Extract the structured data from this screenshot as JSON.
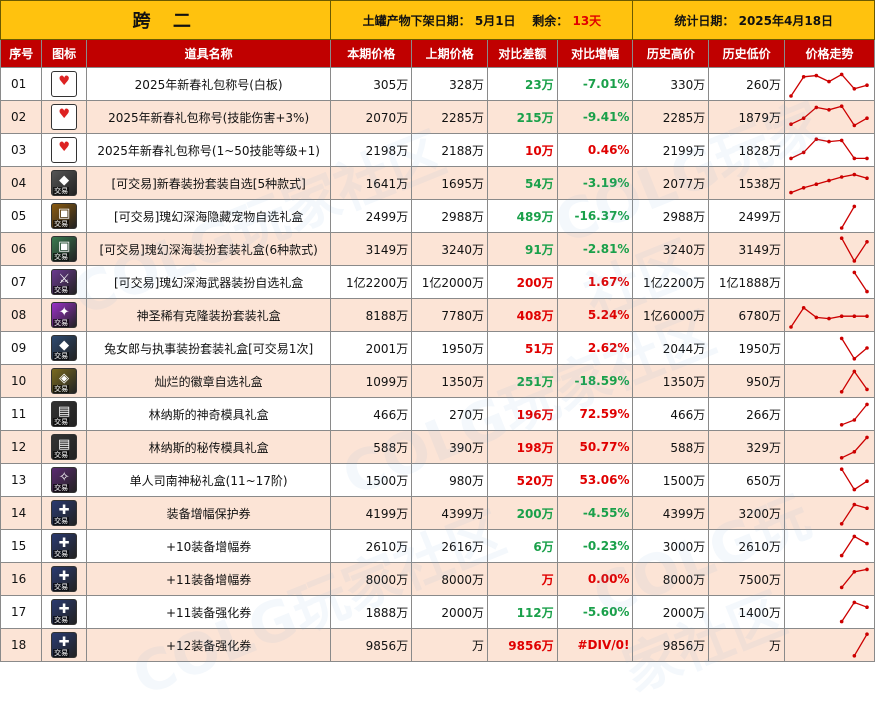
{
  "header": {
    "title": "跨 二",
    "shelf_label": "土罐产物下架日期：",
    "shelf_date": "5月1日",
    "remain_label": "剩余：",
    "remain_value": "13天",
    "stat_label": "统计日期：",
    "stat_date": "2025年4月18日"
  },
  "columns": [
    "序号",
    "图标",
    "道具名称",
    "本期价格",
    "上期价格",
    "对比差额",
    "对比增幅",
    "历史高价",
    "历史低价",
    "价格走势"
  ],
  "colors": {
    "header_bg": "#FFC20E",
    "column_bg": "#C00000",
    "even_row": "#FCE4D6",
    "increase": "#e00000",
    "decrease": "#1aa04a",
    "spark": "#cc0000"
  },
  "rows": [
    {
      "idx": "01",
      "name": "2025年新春礼包称号(白板)",
      "cur": "305万",
      "prev": "328万",
      "diff": "23万",
      "pct": "-7.01%",
      "trend": "down",
      "high": "330万",
      "low": "260万",
      "icon": "title-badge-icon",
      "icon_color": "#d22",
      "spark": [
        1,
        0.2,
        0.15,
        0.4,
        0.1,
        0.7,
        0.55
      ]
    },
    {
      "idx": "02",
      "name": "2025年新春礼包称号(技能伤害+3%)",
      "cur": "2070万",
      "prev": "2285万",
      "diff": "215万",
      "pct": "-9.41%",
      "trend": "down",
      "high": "2285万",
      "low": "1879万",
      "icon": "title-badge-icon",
      "icon_color": "#d22",
      "spark": [
        0.8,
        0.55,
        0.1,
        0.2,
        0.05,
        0.85,
        0.55
      ]
    },
    {
      "idx": "03",
      "name": "2025年新春礼包称号(1~50技能等级+1)",
      "cur": "2198万",
      "prev": "2188万",
      "diff": "10万",
      "pct": "0.46%",
      "trend": "up",
      "high": "2199万",
      "low": "1828万",
      "icon": "title-badge-icon",
      "icon_color": "#d22",
      "spark": [
        0.85,
        0.6,
        0.05,
        0.15,
        0.1,
        0.85,
        0.85
      ]
    },
    {
      "idx": "04",
      "name": "[可交易]新春装扮套装自选[5种款式]",
      "cur": "1641万",
      "prev": "1695万",
      "diff": "54万",
      "pct": "-3.19%",
      "trend": "down",
      "high": "2077万",
      "low": "1538万",
      "icon": "costume-box-icon",
      "icon_color": "#555",
      "spark": [
        0.9,
        0.7,
        0.55,
        0.4,
        0.25,
        0.15,
        0.3
      ]
    },
    {
      "idx": "05",
      "name": "[可交易]瑰幻深海隐藏宠物自选礼盒",
      "cur": "2499万",
      "prev": "2988万",
      "diff": "489万",
      "pct": "-16.37%",
      "trend": "down",
      "high": "2988万",
      "low": "2499万",
      "icon": "chest-icon",
      "icon_color": "#8a5a10",
      "spark": [
        null,
        null,
        null,
        null,
        1,
        0.1,
        null
      ]
    },
    {
      "idx": "06",
      "name": "[可交易]瑰幻深海装扮套装礼盒(6种款式)",
      "cur": "3149万",
      "prev": "3240万",
      "diff": "91万",
      "pct": "-2.81%",
      "trend": "down",
      "high": "3240万",
      "low": "3149万",
      "icon": "chest-icon",
      "icon_color": "#3a7a50",
      "spark": [
        null,
        null,
        null,
        null,
        0.05,
        1,
        0.2
      ]
    },
    {
      "idx": "07",
      "name": "[可交易]瑰幻深海武器装扮自选礼盒",
      "cur": "1亿2200万",
      "prev": "1亿2000万",
      "diff": "200万",
      "pct": "1.67%",
      "trend": "up",
      "high": "1亿2200万",
      "low": "1亿1888万",
      "icon": "weapon-box-icon",
      "icon_color": "#6a3a90",
      "spark": [
        null,
        null,
        null,
        null,
        null,
        0.1,
        0.9
      ]
    },
    {
      "idx": "08",
      "name": "神圣稀有克隆装扮套装礼盒",
      "cur": "8188万",
      "prev": "7780万",
      "diff": "408万",
      "pct": "5.24%",
      "trend": "up",
      "high": "1亿6000万",
      "low": "6780万",
      "icon": "clone-box-icon",
      "icon_color": "#9b30c8",
      "spark": [
        1,
        0.2,
        0.6,
        0.65,
        0.55,
        0.55,
        0.55
      ]
    },
    {
      "idx": "09",
      "name": "兔女郎与执事装扮套装礼盒[可交易1次]",
      "cur": "2001万",
      "prev": "1950万",
      "diff": "51万",
      "pct": "2.62%",
      "trend": "up",
      "high": "2044万",
      "low": "1950万",
      "icon": "costume-box-icon",
      "icon_color": "#2e4a70",
      "spark": [
        null,
        null,
        null,
        null,
        0.1,
        0.95,
        0.5
      ]
    },
    {
      "idx": "10",
      "name": "灿烂的徽章自选礼盒",
      "cur": "1099万",
      "prev": "1350万",
      "diff": "251万",
      "pct": "-18.59%",
      "trend": "down",
      "high": "1350万",
      "low": "950万",
      "icon": "emblem-box-icon",
      "icon_color": "#7a6a20",
      "spark": [
        null,
        null,
        null,
        null,
        0.95,
        0.1,
        0.85
      ]
    },
    {
      "idx": "11",
      "name": "林纳斯的神奇模具礼盒",
      "cur": "466万",
      "prev": "270万",
      "diff": "196万",
      "pct": "72.59%",
      "trend": "up",
      "high": "466万",
      "low": "266万",
      "icon": "mold-box-icon",
      "icon_color": "#333",
      "spark": [
        null,
        null,
        null,
        null,
        0.95,
        0.75,
        0.1
      ]
    },
    {
      "idx": "12",
      "name": "林纳斯的秘传模具礼盒",
      "cur": "588万",
      "prev": "390万",
      "diff": "198万",
      "pct": "50.77%",
      "trend": "up",
      "high": "588万",
      "low": "329万",
      "icon": "mold-box-icon",
      "icon_color": "#333",
      "spark": [
        null,
        null,
        null,
        null,
        0.95,
        0.7,
        0.1
      ]
    },
    {
      "idx": "13",
      "name": "单人司南神秘礼盒(11~17阶)",
      "cur": "1500万",
      "prev": "980万",
      "diff": "520万",
      "pct": "53.06%",
      "trend": "up",
      "high": "1500万",
      "low": "650万",
      "icon": "compass-box-icon",
      "icon_color": "#5a2a70",
      "spark": [
        null,
        null,
        null,
        null,
        0.05,
        0.9,
        0.55
      ]
    },
    {
      "idx": "14",
      "name": "装备增幅保护券",
      "cur": "4199万",
      "prev": "4399万",
      "diff": "200万",
      "pct": "-4.55%",
      "trend": "down",
      "high": "4399万",
      "low": "3200万",
      "icon": "ticket-icon",
      "icon_color": "#2a3a70",
      "spark": [
        null,
        null,
        null,
        null,
        0.95,
        0.15,
        0.3
      ]
    },
    {
      "idx": "15",
      "name": "+10装备增幅券",
      "cur": "2610万",
      "prev": "2616万",
      "diff": "6万",
      "pct": "-0.23%",
      "trend": "down",
      "high": "3000万",
      "low": "2610万",
      "icon": "ticket-icon",
      "icon_color": "#2a3a70",
      "spark": [
        null,
        null,
        null,
        null,
        0.9,
        0.1,
        0.4
      ]
    },
    {
      "idx": "16",
      "name": "+11装备增幅券",
      "cur": "8000万",
      "prev": "8000万",
      "diff": "万",
      "pct": "0.00%",
      "trend": "up",
      "high": "8000万",
      "low": "7500万",
      "icon": "ticket-icon",
      "icon_color": "#2a3a70",
      "spark": [
        null,
        null,
        null,
        null,
        0.85,
        0.2,
        0.1
      ]
    },
    {
      "idx": "17",
      "name": "+11装备强化券",
      "cur": "1888万",
      "prev": "2000万",
      "diff": "112万",
      "pct": "-5.60%",
      "trend": "down",
      "high": "2000万",
      "low": "1400万",
      "icon": "ticket-icon",
      "icon_color": "#2a3a70",
      "spark": [
        null,
        null,
        null,
        null,
        0.9,
        0.1,
        0.3
      ]
    },
    {
      "idx": "18",
      "name": "+12装备强化券",
      "cur": "9856万",
      "prev": "万",
      "diff": "9856万",
      "pct": "#DIV/0!",
      "trend": "up",
      "high": "9856万",
      "low": "万",
      "icon": "ticket-icon",
      "icon_color": "#2a3a70",
      "spark": [
        null,
        null,
        null,
        null,
        null,
        0.95,
        0.05
      ]
    }
  ],
  "icon_tags": {
    "trade": "交易"
  },
  "watermark": "COLG玩家社区"
}
